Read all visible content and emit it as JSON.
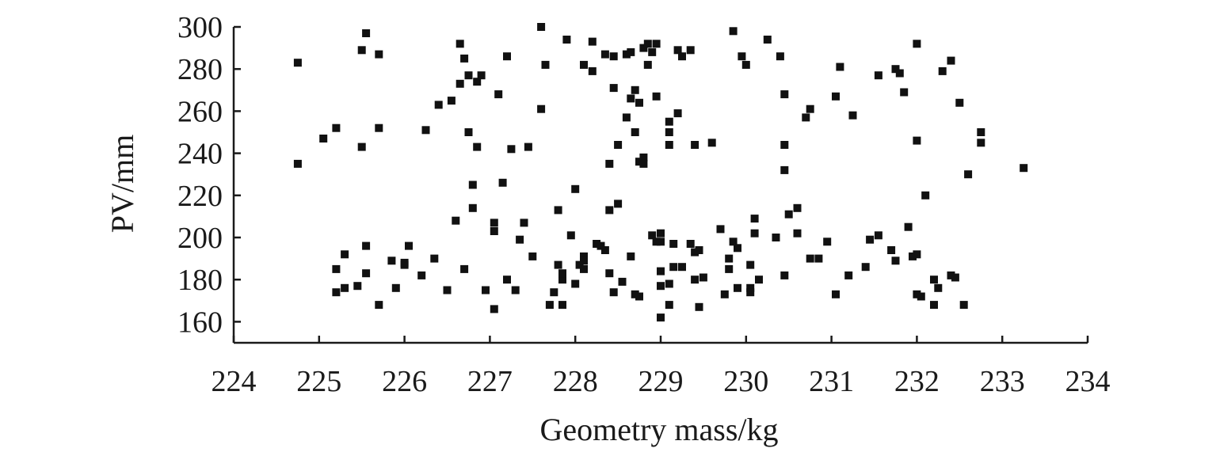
{
  "chart_data": {
    "type": "scatter",
    "xlabel": "Geometry mass/kg",
    "ylabel": "PV/mm",
    "xlim": [
      224,
      234
    ],
    "ylim": [
      150,
      300
    ],
    "xticks": [
      224,
      225,
      226,
      227,
      228,
      229,
      230,
      231,
      232,
      233,
      234
    ],
    "yticks": [
      160,
      180,
      200,
      220,
      240,
      260,
      280,
      300
    ],
    "grid": false,
    "legend": "none",
    "marker": "square",
    "color": "#111111",
    "series": [
      {
        "points": [
          [
            224.75,
            283
          ],
          [
            224.75,
            235
          ],
          [
            225.05,
            247
          ],
          [
            225.2,
            252
          ],
          [
            225.5,
            243
          ],
          [
            225.5,
            289
          ],
          [
            225.55,
            297
          ],
          [
            225.7,
            287
          ],
          [
            225.7,
            252
          ],
          [
            225.2,
            185
          ],
          [
            225.2,
            174
          ],
          [
            225.3,
            192
          ],
          [
            225.3,
            176
          ],
          [
            225.45,
            177
          ],
          [
            225.55,
            196
          ],
          [
            225.55,
            183
          ],
          [
            225.7,
            168
          ],
          [
            225.85,
            189
          ],
          [
            225.9,
            176
          ],
          [
            226.0,
            187
          ],
          [
            226.0,
            188
          ],
          [
            226.05,
            196
          ],
          [
            226.2,
            182
          ],
          [
            226.25,
            251
          ],
          [
            226.35,
            190
          ],
          [
            226.4,
            263
          ],
          [
            226.5,
            175
          ],
          [
            226.55,
            265
          ],
          [
            226.6,
            208
          ],
          [
            226.65,
            292
          ],
          [
            226.65,
            273
          ],
          [
            226.7,
            285
          ],
          [
            226.7,
            185
          ],
          [
            226.75,
            250
          ],
          [
            226.75,
            277
          ],
          [
            226.8,
            225
          ],
          [
            226.8,
            214
          ],
          [
            226.85,
            243
          ],
          [
            226.85,
            274
          ],
          [
            226.9,
            277
          ],
          [
            226.95,
            175
          ],
          [
            227.05,
            203
          ],
          [
            227.05,
            207
          ],
          [
            227.05,
            166
          ],
          [
            227.1,
            268
          ],
          [
            227.15,
            226
          ],
          [
            227.2,
            286
          ],
          [
            227.2,
            180
          ],
          [
            227.25,
            242
          ],
          [
            227.3,
            175
          ],
          [
            227.35,
            199
          ],
          [
            227.4,
            207
          ],
          [
            227.45,
            243
          ],
          [
            227.5,
            191
          ],
          [
            227.6,
            261
          ],
          [
            227.6,
            300
          ],
          [
            227.65,
            282
          ],
          [
            227.7,
            168
          ],
          [
            227.75,
            174
          ],
          [
            227.8,
            213
          ],
          [
            227.8,
            187
          ],
          [
            227.85,
            180
          ],
          [
            227.85,
            183
          ],
          [
            227.85,
            168
          ],
          [
            227.9,
            294
          ],
          [
            227.95,
            201
          ],
          [
            228.0,
            223
          ],
          [
            228.0,
            178
          ],
          [
            228.05,
            187
          ],
          [
            228.1,
            191
          ],
          [
            228.1,
            189
          ],
          [
            228.1,
            185
          ],
          [
            228.1,
            282
          ],
          [
            228.2,
            293
          ],
          [
            228.2,
            279
          ],
          [
            228.25,
            197
          ],
          [
            228.3,
            196
          ],
          [
            228.35,
            194
          ],
          [
            228.35,
            287
          ],
          [
            228.4,
            183
          ],
          [
            228.4,
            213
          ],
          [
            228.4,
            235
          ],
          [
            228.45,
            174
          ],
          [
            228.45,
            271
          ],
          [
            228.45,
            286
          ],
          [
            228.5,
            244
          ],
          [
            228.5,
            216
          ],
          [
            228.55,
            179
          ],
          [
            228.6,
            257
          ],
          [
            228.6,
            287
          ],
          [
            228.65,
            266
          ],
          [
            228.65,
            191
          ],
          [
            228.65,
            288
          ],
          [
            228.7,
            270
          ],
          [
            228.7,
            250
          ],
          [
            228.7,
            173
          ],
          [
            228.75,
            264
          ],
          [
            228.75,
            236
          ],
          [
            228.75,
            172
          ],
          [
            228.8,
            238
          ],
          [
            228.8,
            235
          ],
          [
            228.8,
            290
          ],
          [
            228.85,
            282
          ],
          [
            228.85,
            292
          ],
          [
            228.9,
            201
          ],
          [
            228.9,
            288
          ],
          [
            228.95,
            267
          ],
          [
            228.95,
            198
          ],
          [
            228.95,
            292
          ],
          [
            229.0,
            184
          ],
          [
            229.0,
            177
          ],
          [
            229.0,
            162
          ],
          [
            229.0,
            202
          ],
          [
            229.0,
            198
          ],
          [
            229.1,
            255
          ],
          [
            229.1,
            244
          ],
          [
            229.1,
            250
          ],
          [
            229.1,
            178
          ],
          [
            229.1,
            168
          ],
          [
            229.15,
            186
          ],
          [
            229.15,
            197
          ],
          [
            229.2,
            259
          ],
          [
            229.2,
            289
          ],
          [
            229.25,
            286
          ],
          [
            229.25,
            186
          ],
          [
            229.35,
            289
          ],
          [
            229.35,
            197
          ],
          [
            229.4,
            180
          ],
          [
            229.4,
            193
          ],
          [
            229.4,
            244
          ],
          [
            229.45,
            194
          ],
          [
            229.45,
            167
          ],
          [
            229.5,
            181
          ],
          [
            229.6,
            245
          ],
          [
            229.7,
            204
          ],
          [
            229.75,
            173
          ],
          [
            229.8,
            190
          ],
          [
            229.8,
            185
          ],
          [
            229.85,
            198
          ],
          [
            229.85,
            298
          ],
          [
            229.9,
            176
          ],
          [
            229.9,
            195
          ],
          [
            229.95,
            286
          ],
          [
            230.0,
            282
          ],
          [
            230.05,
            176
          ],
          [
            230.05,
            187
          ],
          [
            230.05,
            174
          ],
          [
            230.1,
            202
          ],
          [
            230.1,
            209
          ],
          [
            230.15,
            180
          ],
          [
            230.25,
            294
          ],
          [
            230.35,
            200
          ],
          [
            230.4,
            286
          ],
          [
            230.45,
            182
          ],
          [
            230.45,
            244
          ],
          [
            230.45,
            232
          ],
          [
            230.45,
            268
          ],
          [
            230.5,
            211
          ],
          [
            230.6,
            214
          ],
          [
            230.6,
            202
          ],
          [
            230.7,
            257
          ],
          [
            230.75,
            261
          ],
          [
            230.75,
            190
          ],
          [
            230.85,
            190
          ],
          [
            230.95,
            198
          ],
          [
            231.05,
            173
          ],
          [
            231.05,
            267
          ],
          [
            231.1,
            281
          ],
          [
            231.2,
            182
          ],
          [
            231.25,
            258
          ],
          [
            231.4,
            186
          ],
          [
            231.45,
            199
          ],
          [
            231.55,
            201
          ],
          [
            231.55,
            277
          ],
          [
            231.7,
            194
          ],
          [
            231.75,
            280
          ],
          [
            231.75,
            189
          ],
          [
            231.8,
            278
          ],
          [
            231.85,
            269
          ],
          [
            231.9,
            205
          ],
          [
            231.95,
            191
          ],
          [
            232.0,
            246
          ],
          [
            232.0,
            292
          ],
          [
            232.0,
            192
          ],
          [
            232.0,
            173
          ],
          [
            232.05,
            172
          ],
          [
            232.1,
            220
          ],
          [
            232.2,
            180
          ],
          [
            232.2,
            168
          ],
          [
            232.25,
            176
          ],
          [
            232.3,
            279
          ],
          [
            232.4,
            182
          ],
          [
            232.4,
            284
          ],
          [
            232.45,
            181
          ],
          [
            232.5,
            264
          ],
          [
            232.55,
            168
          ],
          [
            232.6,
            230
          ],
          [
            232.75,
            245
          ],
          [
            232.75,
            250
          ],
          [
            233.25,
            233
          ]
        ]
      }
    ]
  }
}
